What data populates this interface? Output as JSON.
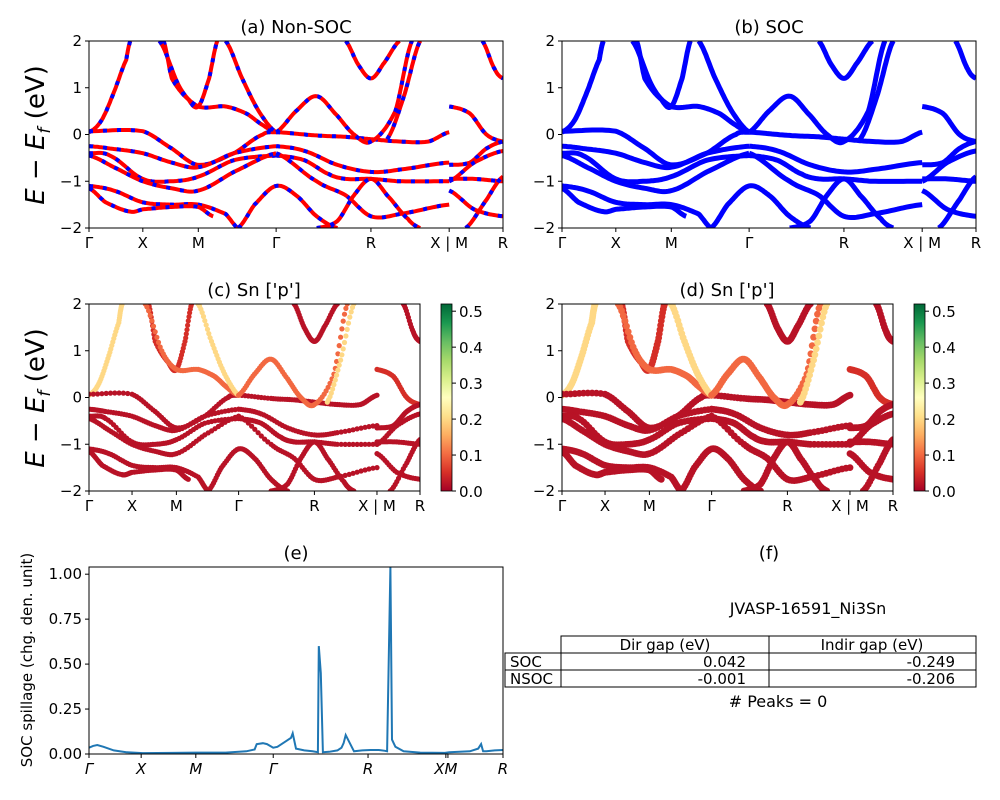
{
  "chart_data": [
    {
      "id": "a",
      "type": "line",
      "title": "(a) Non-SOC",
      "ylabel": "E − E_f (eV)",
      "ylim": [
        -2,
        2
      ],
      "yticks": [
        "2",
        "1",
        "0",
        "−1",
        "−2"
      ],
      "xtick_labels": [
        "Γ",
        "X",
        "M",
        "Γ",
        "R",
        "X | M",
        "R"
      ],
      "xtick_positions": [
        0,
        0.13,
        0.264,
        0.452,
        0.681,
        0.87,
        1
      ],
      "style": "red-blue-dashed",
      "colors": {
        "line_a": "#ff0000",
        "line_b": "#0000ff"
      }
    },
    {
      "id": "b",
      "type": "line",
      "title": "(b) SOC",
      "ylim": [
        -2,
        2
      ],
      "yticks": [
        "2",
        "1",
        "0",
        "−1",
        "−2"
      ],
      "xtick_labels": [
        "Γ",
        "X",
        "M",
        "Γ",
        "R",
        "X | M",
        "R"
      ],
      "xtick_positions": [
        0,
        0.13,
        0.264,
        0.452,
        0.681,
        0.87,
        1
      ],
      "style": "blue-thick",
      "colors": {
        "line": "#0000ff"
      }
    },
    {
      "id": "c",
      "type": "scatter",
      "title": "(c)  Sn ['p']",
      "ylabel": "E − E_f (eV)",
      "ylim": [
        -2,
        2
      ],
      "yticks": [
        "2",
        "1",
        "0",
        "−1",
        "−2"
      ],
      "xtick_labels": [
        "Γ",
        "X",
        "M",
        "Γ",
        "R",
        "X | M",
        "R"
      ],
      "xtick_positions": [
        0,
        0.13,
        0.264,
        0.452,
        0.681,
        0.87,
        1
      ],
      "colorbar": {
        "min": 0.0,
        "max": 0.52,
        "ticks": [
          "0.0",
          "0.1",
          "0.2",
          "0.3",
          "0.4",
          "0.5"
        ],
        "colormap": "RdYlGn"
      }
    },
    {
      "id": "d",
      "type": "scatter",
      "title": "(d) Sn ['p']",
      "ylim": [
        -2,
        2
      ],
      "yticks": [
        "2",
        "1",
        "0",
        "−1",
        "−2"
      ],
      "xtick_labels": [
        "Γ",
        "X",
        "M",
        "Γ",
        "R",
        "X | M",
        "R"
      ],
      "xtick_positions": [
        0,
        0.13,
        0.264,
        0.452,
        0.681,
        0.87,
        1
      ],
      "colorbar": {
        "min": 0.0,
        "max": 0.52,
        "ticks": [
          "0.0",
          "0.1",
          "0.2",
          "0.3",
          "0.4",
          "0.5"
        ],
        "colormap": "RdYlGn"
      }
    },
    {
      "id": "e",
      "type": "line",
      "title": "(e)",
      "ylabel": "SOC spillage (chg. den. unit)",
      "ylim": [
        0,
        1.04
      ],
      "yticks": [
        "0.00",
        "0.25",
        "0.50",
        "0.75",
        "1.00"
      ],
      "ytick_values": [
        0,
        0.25,
        0.5,
        0.75,
        1.0
      ],
      "xtick_labels": [
        "Γ",
        "X",
        "M",
        "Γ",
        "R",
        "X",
        "M",
        "R"
      ],
      "xtick_positions": [
        0,
        0.126,
        0.258,
        0.445,
        0.674,
        0.862,
        0.867,
        1
      ],
      "color": "#1f77b4",
      "x": [
        0,
        0.01,
        0.02,
        0.035,
        0.06,
        0.09,
        0.13,
        0.2,
        0.258,
        0.33,
        0.38,
        0.4,
        0.405,
        0.42,
        0.43,
        0.445,
        0.455,
        0.475,
        0.488,
        0.492,
        0.5,
        0.52,
        0.54,
        0.553,
        0.555,
        0.56,
        0.565,
        0.58,
        0.6,
        0.61,
        0.615,
        0.62,
        0.64,
        0.66,
        0.68,
        0.7,
        0.715,
        0.72,
        0.728,
        0.732,
        0.74,
        0.76,
        0.8,
        0.86,
        0.87,
        0.92,
        0.94,
        0.947,
        0.952,
        0.96,
        0.98,
        1.0
      ],
      "y": [
        0.035,
        0.045,
        0.05,
        0.04,
        0.02,
        0.01,
        0.005,
        0.006,
        0.008,
        0.008,
        0.015,
        0.025,
        0.055,
        0.06,
        0.055,
        0.035,
        0.04,
        0.07,
        0.09,
        0.115,
        0.03,
        0.02,
        0.015,
        0.01,
        0.6,
        0.45,
        0.01,
        0.012,
        0.02,
        0.035,
        0.06,
        0.105,
        0.015,
        0.02,
        0.022,
        0.022,
        0.018,
        0.015,
        1.04,
        0.08,
        0.04,
        0.015,
        0.008,
        0.006,
        0.01,
        0.015,
        0.03,
        0.055,
        0.015,
        0.015,
        0.02,
        0.022
      ]
    },
    {
      "id": "f",
      "type": "table",
      "title": "(f)",
      "subtitle": "JVASP-16591_Ni3Sn",
      "columns": [
        "",
        "Dir gap (eV)",
        "Indir gap (eV)"
      ],
      "rows": [
        [
          "SOC",
          "0.042",
          "-0.249"
        ],
        [
          "NSOC",
          "-0.001",
          "-0.206"
        ]
      ],
      "footer": "# Peaks = 0"
    }
  ],
  "bands": [
    {
      "k": [
        0,
        0.03,
        0.06,
        0.09,
        0.1
      ],
      "e": [
        0.05,
        0.3,
        0.9,
        1.6,
        2.0
      ],
      "w": 0.2
    },
    {
      "k": [
        0,
        0.13,
        0.2,
        0.264,
        0.35,
        0.42,
        0.452
      ],
      "e": [
        0.07,
        0.07,
        -0.3,
        -0.65,
        -0.4,
        0.0,
        0.05
      ],
      "w": 0.02
    },
    {
      "k": [
        0.452,
        0.55,
        0.62,
        0.681,
        0.75,
        0.82,
        0.87
      ],
      "e": [
        0.05,
        -0.02,
        -0.05,
        -0.1,
        -0.15,
        -0.15,
        0.05
      ],
      "w": 0.02
    },
    {
      "k": [
        0,
        0.05,
        0.13,
        0.2,
        0.264,
        0.35,
        0.452
      ],
      "e": [
        -0.25,
        -0.3,
        -0.4,
        -0.6,
        -0.7,
        -0.4,
        -0.25
      ],
      "w": 0.02
    },
    {
      "k": [
        0.452,
        0.52,
        0.6,
        0.681,
        0.75,
        0.87
      ],
      "e": [
        -0.25,
        -0.35,
        -0.65,
        -0.8,
        -0.75,
        -0.6
      ],
      "w": 0.02
    },
    {
      "k": [
        0,
        0.05,
        0.13,
        0.2,
        0.264,
        0.35,
        0.452
      ],
      "e": [
        -0.4,
        -0.45,
        -0.95,
        -1.0,
        -0.9,
        -0.55,
        -0.45
      ],
      "w": 0.02
    },
    {
      "k": [
        0.452,
        0.52,
        0.58,
        0.62,
        0.681,
        0.75,
        0.87
      ],
      "e": [
        -0.45,
        -0.55,
        -0.85,
        -0.95,
        -0.95,
        -1.0,
        -1.0
      ],
      "w": 0.02
    },
    {
      "k": [
        0,
        0.06,
        0.13,
        0.2,
        0.264,
        0.35,
        0.452
      ],
      "e": [
        -0.45,
        -0.7,
        -1.0,
        -1.15,
        -1.2,
        -0.8,
        -0.4
      ],
      "w": 0.02
    },
    {
      "k": [
        0.452,
        0.55,
        0.62,
        0.681,
        0.75,
        0.87
      ],
      "e": [
        -0.4,
        -1.0,
        -1.3,
        -1.75,
        -1.7,
        -1.5
      ],
      "w": 0.02
    },
    {
      "k": [
        0,
        0.06,
        0.13,
        0.2,
        0.264,
        0.33,
        0.36
      ],
      "e": [
        -1.1,
        -1.2,
        -1.45,
        -1.5,
        -1.5,
        -1.7,
        -2.0
      ],
      "w": 0.02
    },
    {
      "k": [
        0,
        0.04,
        0.1,
        0.13,
        0.2,
        0.264,
        0.3
      ],
      "e": [
        -1.15,
        -1.45,
        -1.65,
        -1.6,
        -1.55,
        -1.55,
        -1.75
      ],
      "w": 0.02
    },
    {
      "k": [
        0.36,
        0.4,
        0.452,
        0.5,
        0.55,
        0.6
      ],
      "e": [
        -2.0,
        -1.5,
        -1.1,
        -1.3,
        -1.75,
        -2.0
      ],
      "w": 0.02
    },
    {
      "k": [
        0.55,
        0.6,
        0.64,
        0.681,
        0.72,
        0.77,
        0.8
      ],
      "e": [
        -2.0,
        -1.85,
        -1.3,
        -0.95,
        -1.3,
        -1.8,
        -2.0
      ],
      "w": 0.02
    },
    {
      "k": [
        0.18,
        0.2,
        0.24,
        0.264,
        0.29,
        0.31
      ],
      "e": [
        2.0,
        1.2,
        0.75,
        0.6,
        1.2,
        2.0
      ],
      "w": 0.05
    },
    {
      "k": [
        0.17,
        0.22,
        0.264,
        0.33,
        0.38,
        0.42,
        0.452
      ],
      "e": [
        2.0,
        1.0,
        0.6,
        0.6,
        0.45,
        0.2,
        0.05
      ],
      "w": 0.1
    },
    {
      "k": [
        0.33,
        0.37,
        0.41,
        0.452
      ],
      "e": [
        2.0,
        1.2,
        0.5,
        0.05
      ],
      "w": 0.2
    },
    {
      "k": [
        0.452,
        0.5,
        0.55,
        0.6,
        0.64,
        0.681,
        0.74,
        0.78
      ],
      "e": [
        0.05,
        0.5,
        0.82,
        0.4,
        0.0,
        -0.15,
        0.5,
        2.0
      ],
      "w": 0.1
    },
    {
      "k": [
        0.62,
        0.65,
        0.681,
        0.71,
        0.75
      ],
      "e": [
        2.0,
        1.5,
        1.2,
        1.5,
        2.0
      ],
      "w": 0.02
    },
    {
      "k": [
        0.72,
        0.76,
        0.8
      ],
      "e": [
        -0.1,
        0.8,
        2.0
      ],
      "w": 0.2
    },
    {
      "k": [
        0.87,
        0.92,
        0.96,
        1.0
      ],
      "e": [
        0.6,
        0.45,
        0.0,
        -0.15
      ],
      "w": 0.05
    },
    {
      "k": [
        0.87,
        0.92,
        0.96,
        1.0
      ],
      "e": [
        -0.65,
        -0.6,
        -0.3,
        -0.15
      ],
      "w": 0.02
    },
    {
      "k": [
        0.87,
        0.93,
        1.0
      ],
      "e": [
        -1.0,
        -0.6,
        -0.35
      ],
      "w": 0.02
    },
    {
      "k": [
        0.87,
        0.93,
        1.0
      ],
      "e": [
        -0.95,
        -0.95,
        -1.0
      ],
      "w": 0.02
    },
    {
      "k": [
        0.87,
        0.93,
        1.0
      ],
      "e": [
        -1.2,
        -1.6,
        -1.75
      ],
      "w": 0.02
    },
    {
      "k": [
        0.91,
        0.96,
        1.0
      ],
      "e": [
        -2.0,
        -1.4,
        -0.9
      ],
      "w": 0.02
    },
    {
      "k": [
        0.95,
        0.98,
        1.0
      ],
      "e": [
        2.0,
        1.4,
        1.2
      ],
      "w": 0.02
    }
  ]
}
